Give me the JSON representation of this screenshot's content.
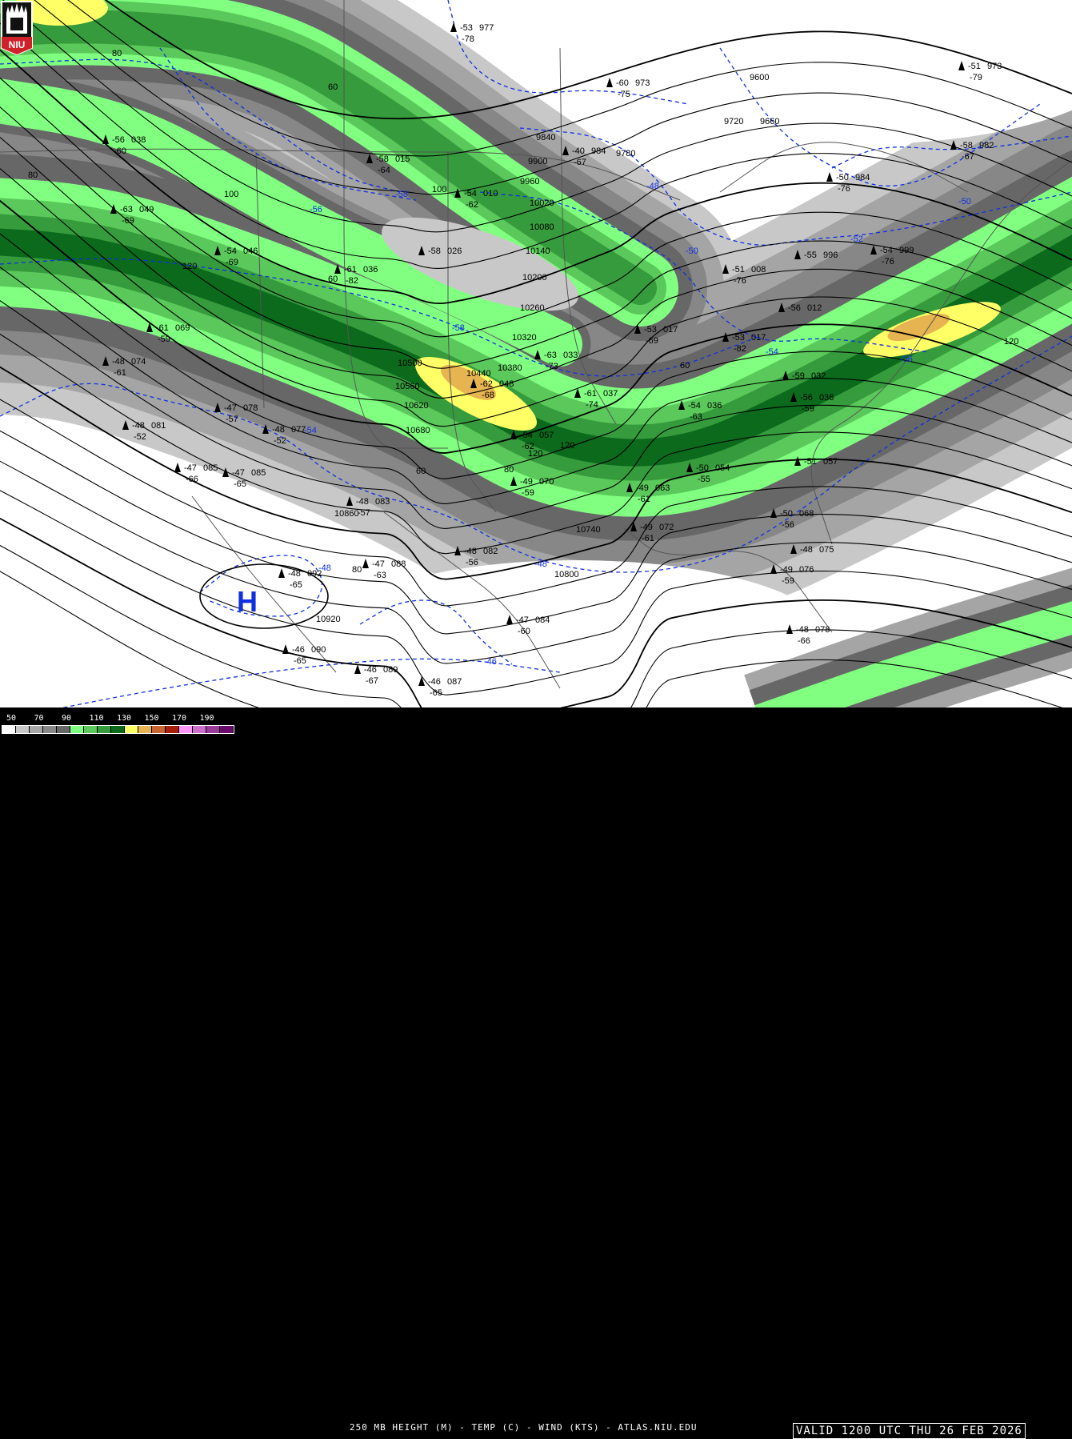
{
  "title": "250 MB HEIGHT (M) - TEMP (C) - WIND (KTS) - ATLAS.NIU.EDU",
  "valid": "VALID 1200 UTC THU 26 FEB 2026",
  "logo_text": "NIU",
  "legend": {
    "labels": [
      "50",
      "70",
      "90",
      "110",
      "130",
      "150",
      "170",
      "190"
    ],
    "colors": [
      "#ffffff",
      "#c8c8c8",
      "#a5a5a5",
      "#878787",
      "#676767",
      "#80ff80",
      "#5ac85a",
      "#369b3c",
      "#0b6a1c",
      "#ffff66",
      "#e6b450",
      "#c8642d",
      "#a51e0a",
      "#ff96ff",
      "#cd6ecd",
      "#9b3c9b",
      "#6a0a6a"
    ]
  },
  "height_labels": [
    "9600",
    "9660",
    "9720",
    "9780",
    "9840",
    "9900",
    "9960",
    "10020",
    "10080",
    "10140",
    "10200",
    "10260",
    "10320",
    "10380",
    "10440",
    "10500",
    "10560",
    "10620",
    "10680",
    "10740",
    "10800",
    "10860",
    "10920"
  ],
  "speed_labels": [
    "60",
    "80",
    "100",
    "120",
    "60",
    "80",
    "100",
    "120",
    "60",
    "80",
    "120",
    "80",
    "60",
    "120"
  ],
  "temp_labels": [
    "-58",
    "-56",
    "-48",
    "-50",
    "-52",
    "-54",
    "-56",
    "-58",
    "-54",
    "-48",
    "-48",
    "-46",
    "-50"
  ],
  "high_marker": "H",
  "stations": [
    {
      "t": "-53",
      "h": "977",
      "d": "-78"
    },
    {
      "t": "-60",
      "h": "973",
      "d": "-75"
    },
    {
      "t": "-51",
      "h": "973",
      "d": "-79"
    },
    {
      "t": "-58",
      "h": "982",
      "d": "-67"
    },
    {
      "t": "-50",
      "h": "984",
      "d": "-76"
    },
    {
      "t": "-40",
      "h": "984",
      "d": "-67"
    },
    {
      "t": "-56",
      "h": "038",
      "d": "-60"
    },
    {
      "t": "-58",
      "h": "015",
      "d": "-64"
    },
    {
      "t": "-54",
      "h": "010",
      "d": "-62"
    },
    {
      "t": "-63",
      "h": "049",
      "d": "-69"
    },
    {
      "t": "-54",
      "h": "046",
      "d": "-69"
    },
    {
      "t": "-58",
      "h": "026",
      "d": ""
    },
    {
      "t": "-61",
      "h": "036",
      "d": "-82"
    },
    {
      "t": "-51",
      "h": "008",
      "d": "-76"
    },
    {
      "t": "-55",
      "h": "996",
      "d": ""
    },
    {
      "t": "-54",
      "h": "999",
      "d": "-76"
    },
    {
      "t": "-56",
      "h": "012",
      "d": ""
    },
    {
      "t": "-53",
      "h": "017",
      "d": "-69"
    },
    {
      "t": "-53",
      "h": "017",
      "d": "-82"
    },
    {
      "t": "-61",
      "h": "069",
      "d": "-59"
    },
    {
      "t": "-48",
      "h": "074",
      "d": "-61"
    },
    {
      "t": "-63",
      "h": "033",
      "d": "-73"
    },
    {
      "t": "-59",
      "h": "032",
      "d": ""
    },
    {
      "t": "-62",
      "h": "048",
      "d": "-68"
    },
    {
      "t": "-61",
      "h": "037",
      "d": "-74"
    },
    {
      "t": "-56",
      "h": "036",
      "d": "-59"
    },
    {
      "t": "-47",
      "h": "078",
      "d": "-57"
    },
    {
      "t": "-48",
      "h": "077",
      "d": "-52"
    },
    {
      "t": "-54",
      "h": "036",
      "d": "-63"
    },
    {
      "t": "-48",
      "h": "081",
      "d": "-52"
    },
    {
      "t": "-54",
      "h": "057",
      "d": "-62"
    },
    {
      "t": "-47",
      "h": "085",
      "d": "-66"
    },
    {
      "t": "-47",
      "h": "085",
      "d": "-65"
    },
    {
      "t": "-50",
      "h": "054",
      "d": "-55"
    },
    {
      "t": "-51",
      "h": "057",
      "d": ""
    },
    {
      "t": "-49",
      "h": "070",
      "d": "-59"
    },
    {
      "t": "-49",
      "h": "063",
      "d": "-61"
    },
    {
      "t": "-48",
      "h": "083",
      "d": "-57"
    },
    {
      "t": "-50",
      "h": "068",
      "d": "-56"
    },
    {
      "t": "-49",
      "h": "072",
      "d": "-61"
    },
    {
      "t": "-48",
      "h": "075",
      "d": ""
    },
    {
      "t": "-48",
      "h": "082",
      "d": "-56"
    },
    {
      "t": "-47",
      "h": "088",
      "d": "-63"
    },
    {
      "t": "-48",
      "h": "092",
      "d": "-65"
    },
    {
      "t": "-49",
      "h": "076",
      "d": "-59"
    },
    {
      "t": "-47",
      "h": "084",
      "d": "-60"
    },
    {
      "t": "-48",
      "h": "078",
      "d": "-66"
    },
    {
      "t": "-46",
      "h": "090",
      "d": "-65"
    },
    {
      "t": "-46",
      "h": "089",
      "d": "-67"
    },
    {
      "t": "-46",
      "h": "087",
      "d": "-65"
    }
  ]
}
